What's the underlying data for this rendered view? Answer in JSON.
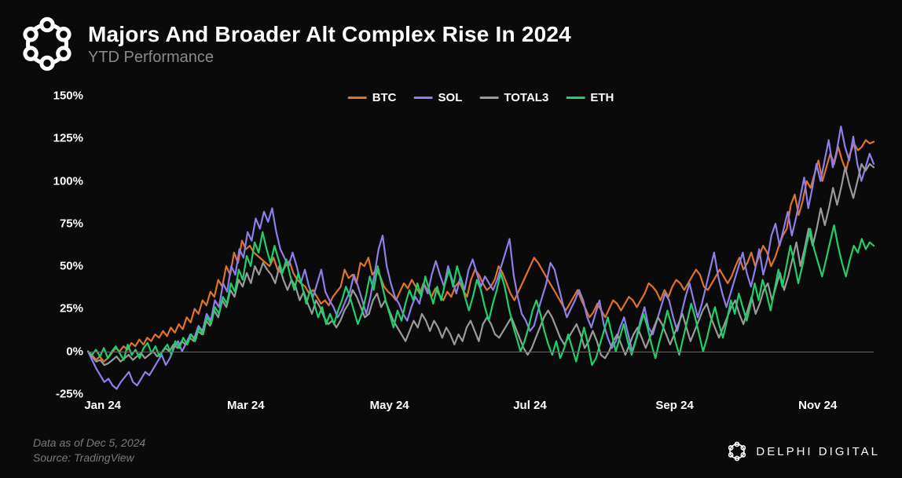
{
  "header": {
    "title": "Majors And Broader Alt Complex Rise In 2024",
    "subtitle": "YTD Performance"
  },
  "chart": {
    "type": "line",
    "background_color": "#0a0a0a",
    "grid_color": "#666666",
    "text_color": "#ffffff",
    "muted_text_color": "#7a7a7a",
    "title_fontsize": 28,
    "subtitle_fontsize": 20,
    "label_fontsize": 15,
    "line_width": 2.2,
    "ylim": [
      -25,
      150
    ],
    "ytick_step": 25,
    "yticks": [
      "-25%",
      "0%",
      "25%",
      "50%",
      "75%",
      "100%",
      "125%",
      "150%"
    ],
    "xticks": [
      "Jan 24",
      "Mar 24",
      "May 24",
      "Jul 24",
      "Sep 24",
      "Nov 24"
    ],
    "x_domain_points": 200,
    "zero_line": true,
    "legend": {
      "position": "top-center",
      "items": [
        {
          "label": "BTC",
          "color": "#e0732a"
        },
        {
          "label": "SOL",
          "color": "#8b7fe8"
        },
        {
          "label": "TOTAL3",
          "color": "#9a9a9a"
        },
        {
          "label": "ETH",
          "color": "#1fcf6b"
        }
      ]
    },
    "series": [
      {
        "name": "BTC",
        "color": "#e0732a",
        "values": [
          0,
          -2,
          -5,
          -3,
          -6,
          -4,
          -1,
          2,
          0,
          3,
          1,
          5,
          3,
          7,
          4,
          8,
          6,
          10,
          8,
          12,
          9,
          14,
          11,
          16,
          13,
          20,
          17,
          25,
          22,
          30,
          27,
          35,
          32,
          42,
          38,
          50,
          45,
          58,
          52,
          65,
          60,
          62,
          58,
          56,
          54,
          52,
          50,
          55,
          48,
          46,
          50,
          53,
          46,
          42,
          40,
          38,
          34,
          36,
          32,
          28,
          30,
          27,
          32,
          35,
          38,
          48,
          43,
          45,
          40,
          52,
          50,
          55,
          45,
          48,
          44,
          38,
          35,
          33,
          30,
          35,
          40,
          37,
          42,
          38,
          34,
          40,
          36,
          32,
          37,
          33,
          30,
          35,
          32,
          38,
          41,
          36,
          32,
          42,
          48,
          45,
          40,
          36,
          38,
          42,
          50,
          46,
          40,
          34,
          30,
          35,
          40,
          45,
          50,
          55,
          52,
          48,
          44,
          40,
          36,
          32,
          28,
          24,
          28,
          32,
          36,
          30,
          25,
          20,
          23,
          28,
          24,
          20,
          25,
          30,
          28,
          24,
          28,
          32,
          30,
          26,
          30,
          34,
          40,
          38,
          35,
          30,
          36,
          32,
          38,
          42,
          40,
          36,
          40,
          44,
          48,
          45,
          38,
          36,
          40,
          44,
          48,
          44,
          40,
          44,
          50,
          55,
          48,
          52,
          58,
          50,
          56,
          62,
          58,
          50,
          55,
          62,
          68,
          72,
          86,
          92,
          80,
          88,
          100,
          96,
          104,
          112,
          100,
          108,
          116,
          110,
          120,
          112,
          106,
          116,
          122,
          118,
          120,
          124,
          122,
          123
        ]
      },
      {
        "name": "SOL",
        "color": "#8b7fe8",
        "values": [
          0,
          -5,
          -10,
          -14,
          -18,
          -16,
          -20,
          -22,
          -18,
          -15,
          -12,
          -18,
          -20,
          -16,
          -12,
          -14,
          -10,
          -6,
          -2,
          -8,
          -4,
          2,
          6,
          0,
          5,
          10,
          8,
          15,
          12,
          22,
          18,
          30,
          26,
          40,
          35,
          50,
          45,
          60,
          55,
          70,
          65,
          78,
          72,
          82,
          76,
          84,
          70,
          60,
          55,
          50,
          58,
          50,
          40,
          48,
          38,
          32,
          40,
          48,
          35,
          30,
          26,
          20,
          24,
          30,
          35,
          45,
          38,
          30,
          22,
          32,
          45,
          60,
          68,
          50,
          40,
          32,
          28,
          22,
          18,
          26,
          32,
          28,
          40,
          34,
          45,
          53,
          45,
          38,
          50,
          42,
          34,
          44,
          36,
          48,
          54,
          46,
          38,
          44,
          40,
          36,
          42,
          50,
          58,
          66,
          45,
          32,
          22,
          18,
          12,
          15,
          24,
          32,
          40,
          52,
          48,
          38,
          28,
          20,
          25,
          30,
          36,
          30,
          20,
          14,
          22,
          30,
          16,
          8,
          2,
          6,
          14,
          20,
          10,
          0,
          8,
          18,
          26,
          14,
          10,
          18,
          26,
          34,
          30,
          20,
          12,
          22,
          32,
          40,
          30,
          20,
          28,
          38,
          48,
          58,
          44,
          34,
          26,
          34,
          42,
          50,
          58,
          46,
          38,
          48,
          60,
          45,
          54,
          68,
          75,
          62,
          72,
          82,
          68,
          78,
          90,
          102,
          84,
          96,
          110,
          100,
          112,
          124,
          108,
          118,
          132,
          120,
          112,
          126,
          110,
          100,
          108,
          116,
          110
        ]
      },
      {
        "name": "TOTAL3",
        "color": "#9a9a9a",
        "values": [
          0,
          -3,
          -6,
          -5,
          -8,
          -7,
          -5,
          -3,
          -6,
          -4,
          -2,
          -5,
          -3,
          -1,
          -4,
          -2,
          0,
          -3,
          -1,
          2,
          0,
          4,
          2,
          6,
          4,
          8,
          6,
          12,
          10,
          18,
          15,
          24,
          20,
          30,
          26,
          36,
          32,
          42,
          38,
          46,
          40,
          50,
          45,
          52,
          48,
          45,
          40,
          50,
          42,
          36,
          42,
          38,
          30,
          35,
          28,
          22,
          30,
          26,
          20,
          16,
          18,
          14,
          18,
          24,
          28,
          36,
          32,
          26,
          20,
          22,
          30,
          34,
          26,
          30,
          24,
          18,
          14,
          10,
          6,
          12,
          18,
          14,
          22,
          18,
          12,
          18,
          14,
          8,
          14,
          10,
          4,
          10,
          6,
          14,
          18,
          12,
          6,
          16,
          20,
          16,
          10,
          8,
          12,
          16,
          20,
          14,
          8,
          2,
          -2,
          2,
          8,
          14,
          20,
          24,
          20,
          14,
          8,
          4,
          8,
          12,
          16,
          10,
          2,
          6,
          12,
          6,
          -2,
          -4,
          0,
          6,
          10,
          4,
          -2,
          4,
          10,
          14,
          8,
          2,
          8,
          14,
          20,
          16,
          10,
          4,
          10,
          16,
          22,
          14,
          6,
          12,
          18,
          24,
          28,
          20,
          14,
          8,
          14,
          20,
          26,
          30,
          22,
          16,
          24,
          32,
          22,
          28,
          36,
          40,
          30,
          38,
          46,
          36,
          44,
          54,
          64,
          50,
          60,
          72,
          62,
          72,
          84,
          74,
          84,
          96,
          86,
          96,
          108,
          98,
          90,
          100,
          110,
          106,
          110,
          108
        ]
      },
      {
        "name": "ETH",
        "color": "#1fcf6b",
        "values": [
          0,
          -2,
          1,
          -3,
          2,
          -4,
          0,
          3,
          -1,
          -5,
          4,
          -2,
          1,
          -4,
          2,
          5,
          -1,
          3,
          -3,
          1,
          4,
          -2,
          6,
          2,
          8,
          4,
          10,
          6,
          14,
          10,
          20,
          16,
          26,
          22,
          32,
          28,
          40,
          35,
          48,
          42,
          56,
          50,
          64,
          58,
          70,
          60,
          52,
          62,
          54,
          46,
          54,
          44,
          36,
          46,
          38,
          28,
          36,
          28,
          20,
          26,
          16,
          22,
          16,
          24,
          30,
          38,
          32,
          24,
          16,
          22,
          32,
          44,
          36,
          50,
          40,
          30,
          22,
          14,
          24,
          18,
          28,
          36,
          30,
          40,
          32,
          44,
          36,
          28,
          38,
          30,
          40,
          48,
          38,
          50,
          42,
          32,
          24,
          32,
          42,
          36,
          26,
          18,
          28,
          36,
          46,
          38,
          26,
          16,
          8,
          0,
          6,
          14,
          24,
          30,
          22,
          12,
          4,
          -2,
          6,
          -4,
          2,
          10,
          2,
          -6,
          4,
          14,
          4,
          -8,
          -4,
          4,
          12,
          20,
          10,
          0,
          8,
          16,
          6,
          -2,
          6,
          14,
          22,
          14,
          4,
          -4,
          6,
          14,
          24,
          16,
          6,
          -2,
          8,
          18,
          28,
          20,
          10,
          0,
          8,
          18,
          26,
          16,
          8,
          18,
          30,
          22,
          34,
          26,
          18,
          28,
          40,
          30,
          42,
          34,
          24,
          36,
          48,
          38,
          50,
          62,
          52,
          40,
          50,
          62,
          72,
          60,
          52,
          44,
          54,
          64,
          74,
          62,
          52,
          44,
          54,
          62,
          58,
          66,
          60,
          64,
          62
        ]
      }
    ]
  },
  "footer": {
    "asof": "Data as of Dec 5, 2024",
    "source": "Source: TradingView",
    "brand": "DELPHI DIGITAL"
  }
}
